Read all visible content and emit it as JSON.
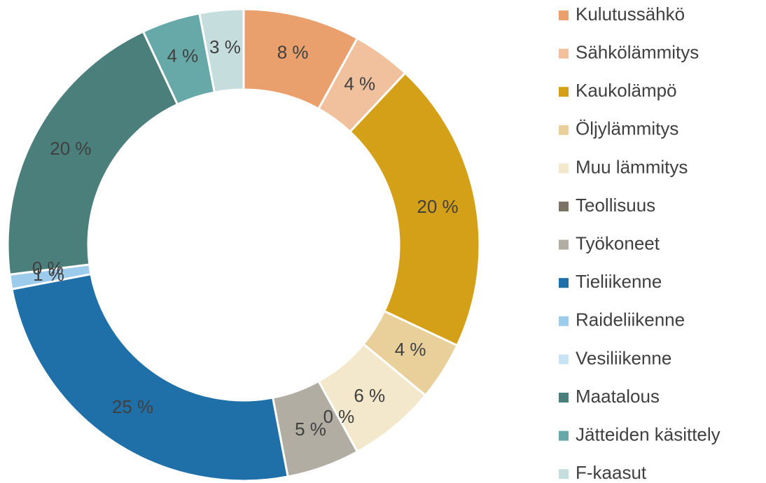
{
  "chart_data": {
    "type": "donut",
    "categories": [
      "Kulutussähkö",
      "Sähkölämmitys",
      "Kaukolämpö",
      "Öljylämmitys",
      "Muu lämmitys",
      "Teollisuus",
      "Työkoneet",
      "Tieliikenne",
      "Raideliikenne",
      "Vesiliikenne",
      "Maatalous",
      "Jätteiden käsittely",
      "F-kaasut"
    ],
    "values": [
      8,
      4,
      20,
      4,
      6,
      0,
      5,
      25,
      1,
      0,
      20,
      4,
      3
    ],
    "value_labels": [
      "8 %",
      "4 %",
      "20 %",
      "4 %",
      "6 %",
      "0 %",
      "5 %",
      "25 %",
      "1 %",
      "0 %",
      "20 %",
      "4 %",
      "3 %"
    ],
    "colors": [
      "#e9a06c",
      "#f1c09c",
      "#d4a017",
      "#e9d09a",
      "#f3e8cb",
      "#7b7364",
      "#b2ada3",
      "#1f6fa8",
      "#9ccbec",
      "#c8e4f4",
      "#4a7f7b",
      "#67a9a9",
      "#c5dddd"
    ],
    "legend": "right"
  }
}
